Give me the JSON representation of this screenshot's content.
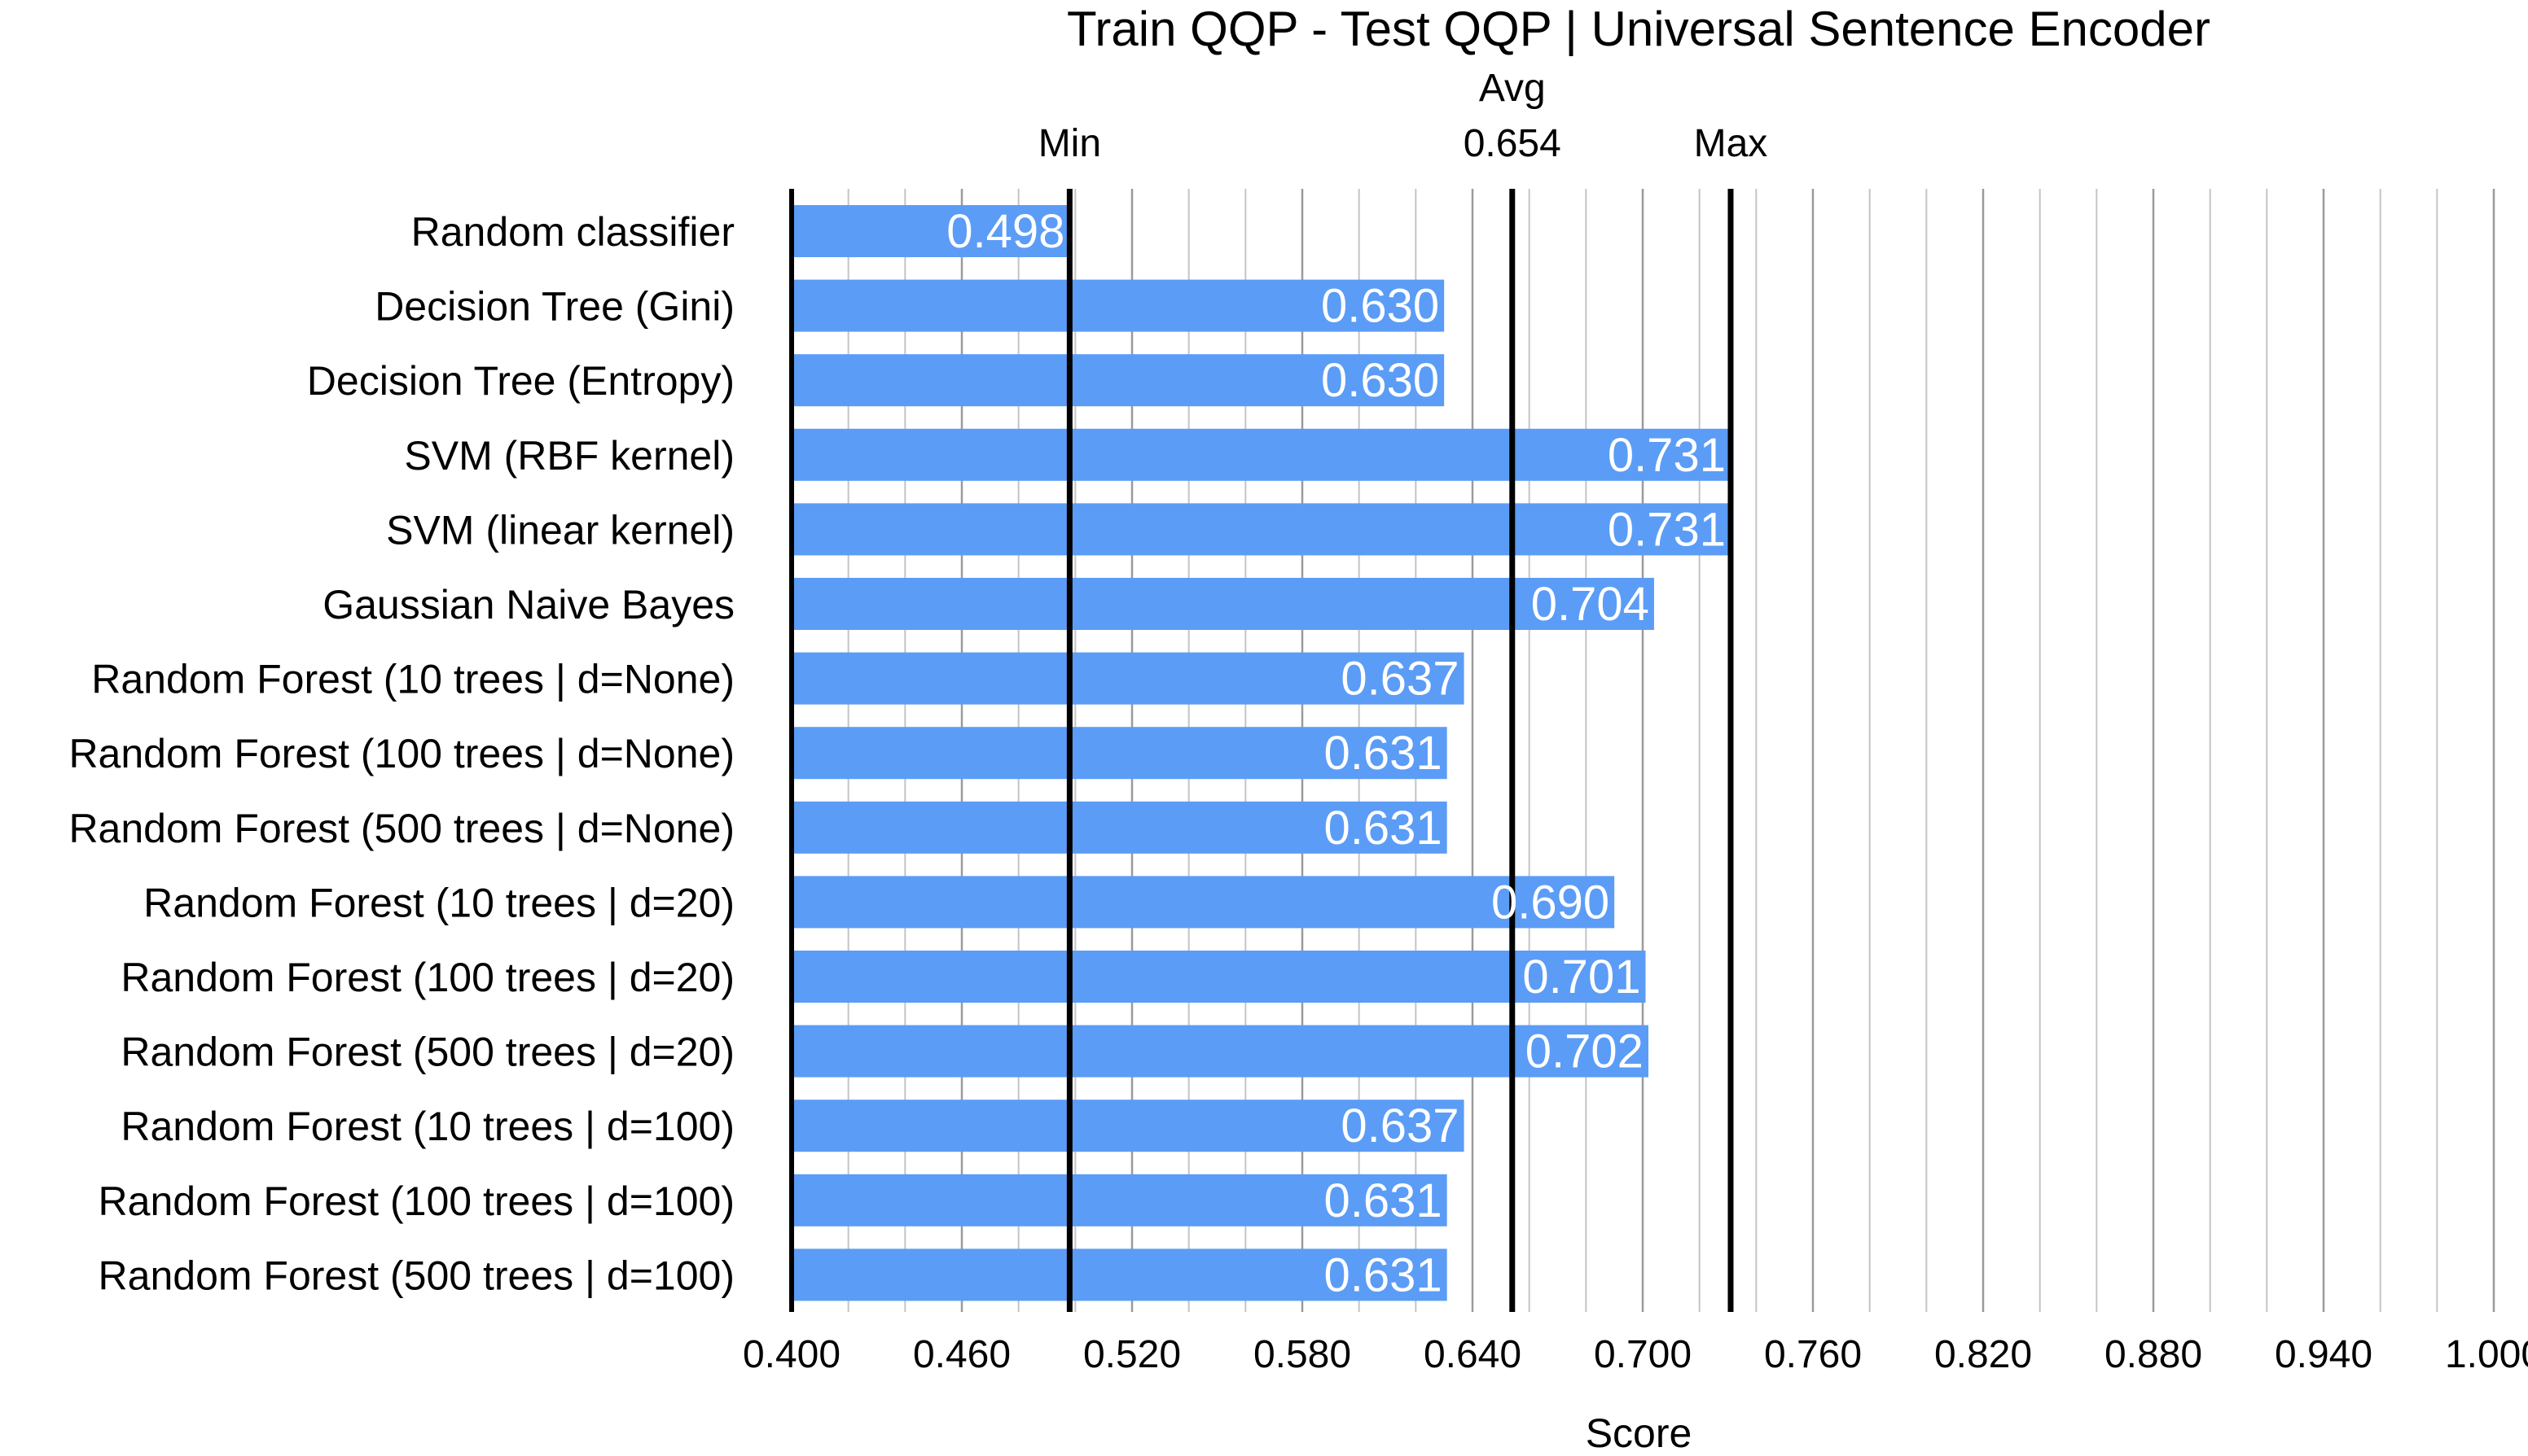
{
  "chart_data": {
    "type": "bar",
    "orientation": "horizontal",
    "title": "Train QQP - Test QQP | Universal Sentence Encoder",
    "xlabel": "Score",
    "ylabel": "",
    "xlim": [
      0.4,
      1.0
    ],
    "xticks": [
      "0.400",
      "0.460",
      "0.520",
      "0.580",
      "0.640",
      "0.700",
      "0.760",
      "0.820",
      "0.880",
      "0.940",
      "1.000"
    ],
    "grid": true,
    "bar_color": "#5b9cf6",
    "label_color": "#ffffff",
    "categories": [
      "Random classifier",
      "Decision Tree (Gini)",
      "Decision Tree (Entropy)",
      "SVM (RBF kernel)",
      "SVM (linear kernel)",
      "Gaussian Naive Bayes",
      "Random Forest (10 trees | d=None)",
      "Random Forest (100 trees | d=None)",
      "Random Forest (500 trees | d=None)",
      "Random Forest (10 trees | d=20)",
      "Random Forest (100 trees | d=20)",
      "Random Forest (500 trees | d=20)",
      "Random Forest (10 trees | d=100)",
      "Random Forest (100 trees | d=100)",
      "Random Forest (500 trees | d=100)"
    ],
    "values": [
      0.498,
      0.63,
      0.63,
      0.731,
      0.731,
      0.704,
      0.637,
      0.631,
      0.631,
      0.69,
      0.701,
      0.702,
      0.637,
      0.631,
      0.631
    ],
    "value_labels": [
      "0.498",
      "0.630",
      "0.630",
      "0.731",
      "0.731",
      "0.704",
      "0.637",
      "0.631",
      "0.631",
      "0.690",
      "0.701",
      "0.702",
      "0.637",
      "0.631",
      "0.631"
    ],
    "reference_lines": [
      {
        "label": "Min",
        "value": 0.498
      },
      {
        "label": "Avg",
        "sublabel": "0.654",
        "value": 0.654
      },
      {
        "label": "Max",
        "value": 0.731
      }
    ]
  }
}
